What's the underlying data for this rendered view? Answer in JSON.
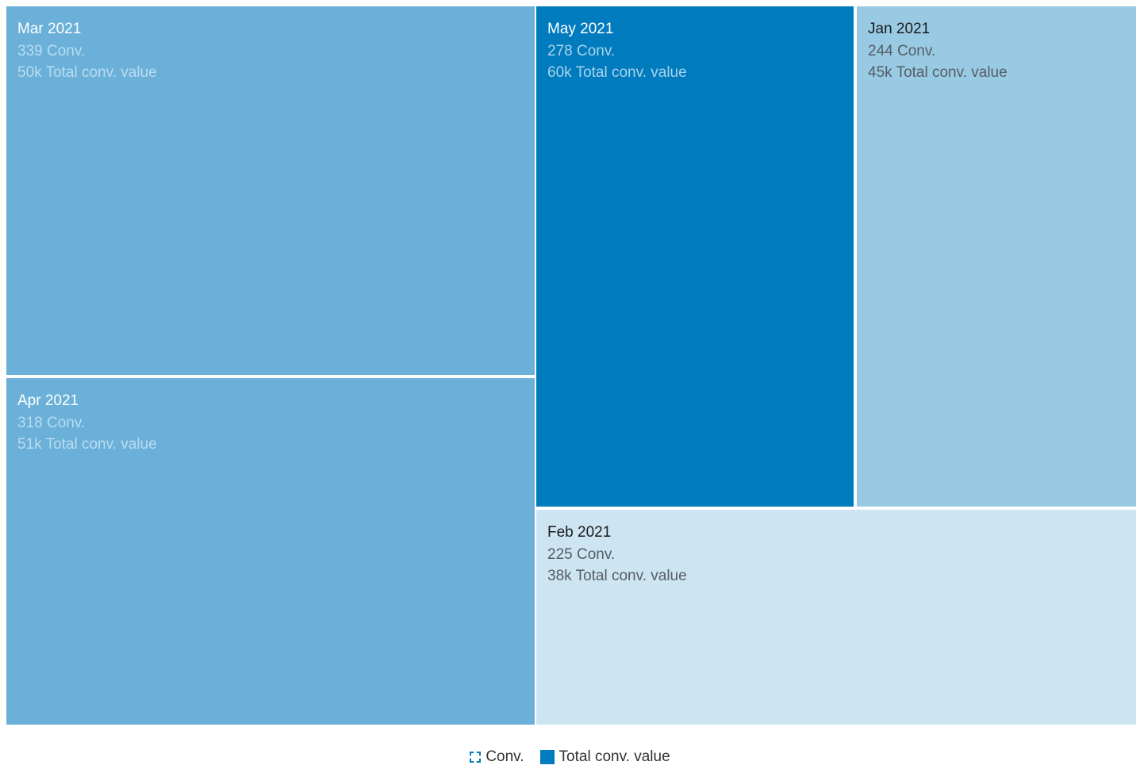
{
  "chart_data": {
    "type": "treemap",
    "size_measure": "Conv.",
    "color_measure": "Total conv. value",
    "items": [
      {
        "label": "Mar 2021",
        "conv": 339,
        "conv_text": "339 Conv.",
        "value_k": 50,
        "value_text": "50k Total conv. value",
        "color": "#6ab0d8"
      },
      {
        "label": "Apr 2021",
        "conv": 318,
        "conv_text": "318 Conv.",
        "value_k": 51,
        "value_text": "51k Total conv. value",
        "color": "#6ab0d8"
      },
      {
        "label": "May 2021",
        "conv": 278,
        "conv_text": "278 Conv.",
        "value_k": 60,
        "value_text": "60k Total conv. value",
        "color": "#007bbd"
      },
      {
        "label": "Jan 2021",
        "conv": 244,
        "conv_text": "244 Conv.",
        "value_k": 45,
        "value_text": "45k Total conv. value",
        "color": "#99cae3"
      },
      {
        "label": "Feb 2021",
        "conv": 225,
        "conv_text": "225 Conv.",
        "value_k": 38,
        "value_text": "38k Total conv. value",
        "color": "#cde4f2"
      }
    ],
    "legend": {
      "placement": "bottom-center",
      "items": [
        {
          "label": "Conv.",
          "style": "dashed"
        },
        {
          "label": "Total conv. value",
          "style": "solid",
          "color": "#007bbd"
        }
      ]
    }
  }
}
